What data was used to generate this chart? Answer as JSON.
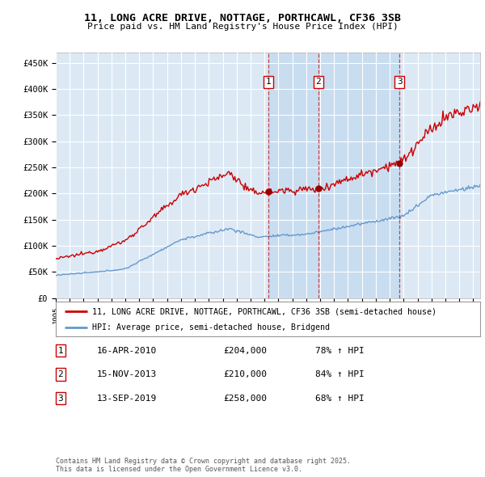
{
  "title_line1": "11, LONG ACRE DRIVE, NOTTAGE, PORTHCAWL, CF36 3SB",
  "title_line2": "Price paid vs. HM Land Registry's House Price Index (HPI)",
  "ylabel_ticks": [
    "£0",
    "£50K",
    "£100K",
    "£150K",
    "£200K",
    "£250K",
    "£300K",
    "£350K",
    "£400K",
    "£450K"
  ],
  "ylabel_values": [
    0,
    50000,
    100000,
    150000,
    200000,
    250000,
    300000,
    350000,
    400000,
    450000
  ],
  "ylim": [
    0,
    470000
  ],
  "xlim_start": 1995.0,
  "xlim_end": 2025.5,
  "background_color": "#dce9f5",
  "shaded_region_color": "#c8ddf0",
  "red_line_color": "#cc0000",
  "blue_line_color": "#6699cc",
  "grid_color": "#ffffff",
  "sale_dates": [
    2010.29,
    2013.88,
    2019.71
  ],
  "sale_prices": [
    204000,
    210000,
    258000
  ],
  "sale_labels": [
    "1",
    "2",
    "3"
  ],
  "legend_label_red": "11, LONG ACRE DRIVE, NOTTAGE, PORTHCAWL, CF36 3SB (semi-detached house)",
  "legend_label_blue": "HPI: Average price, semi-detached house, Bridgend",
  "table_rows": [
    [
      "1",
      "16-APR-2010",
      "£204,000",
      "78% ↑ HPI"
    ],
    [
      "2",
      "15-NOV-2013",
      "£210,000",
      "84% ↑ HPI"
    ],
    [
      "3",
      "13-SEP-2019",
      "£258,000",
      "68% ↑ HPI"
    ]
  ],
  "footer_text": "Contains HM Land Registry data © Crown copyright and database right 2025.\nThis data is licensed under the Open Government Licence v3.0.",
  "x_tick_years": [
    1995,
    1996,
    1997,
    1998,
    1999,
    2000,
    2001,
    2002,
    2003,
    2004,
    2005,
    2006,
    2007,
    2008,
    2009,
    2010,
    2011,
    2012,
    2013,
    2014,
    2015,
    2016,
    2017,
    2018,
    2019,
    2020,
    2021,
    2022,
    2023,
    2024,
    2025
  ]
}
